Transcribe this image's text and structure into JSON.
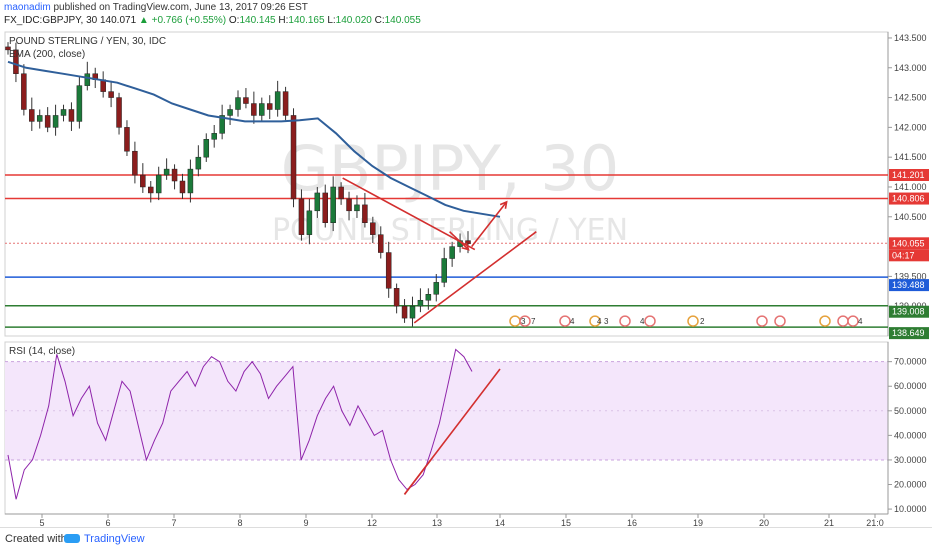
{
  "header": {
    "author": "maonadim",
    "published_text": "published on TradingView.com, June 13, 2017 09:26 EST",
    "symbol_line": "FX_IDC:GBPJPY, 30",
    "last": "140.071",
    "change": "▲ +0.766 (+0.55%)",
    "o_label": "O:",
    "o_value": "140.145",
    "h_label": "H:",
    "h_value": "140.165",
    "l_label": "L:",
    "l_value": "140.020",
    "c_label": "C:",
    "c_value": "140.055"
  },
  "chart_data": [
    {
      "type": "candlestick",
      "title": "POUND STERLING / YEN, 30, IDC",
      "indicator": "EMA (200, close)",
      "watermark_symbol": "GBPJPY, 30",
      "watermark_name": "POUND STERLING / YEN",
      "ylim": [
        138.5,
        143.6
      ],
      "y_ticks": [
        "143.500",
        "143.000",
        "142.500",
        "142.000",
        "141.500",
        "141.000",
        "140.500",
        "139.500",
        "139.000"
      ],
      "x_ticks": [
        "5",
        "6",
        "7",
        "8",
        "9",
        "12",
        "13",
        "14",
        "15",
        "16",
        "19",
        "20",
        "21",
        "21:0"
      ],
      "price_labels": [
        {
          "value": "141.201",
          "color": "#e53935"
        },
        {
          "value": "140.806",
          "color": "#e53935"
        },
        {
          "value": "140.055",
          "color": "#e53935"
        },
        {
          "value": "04:17",
          "color": "#e53935"
        },
        {
          "value": "139.488",
          "color": "#1e5bd8"
        },
        {
          "value": "139.008",
          "color": "#2e7d32"
        },
        {
          "value": "138.649",
          "color": "#2e7d32"
        }
      ],
      "horizontal_levels": [
        {
          "price": 141.201,
          "color": "#e53935"
        },
        {
          "price": 140.806,
          "color": "#e53935"
        },
        {
          "price": 139.488,
          "color": "#1e5bd8"
        },
        {
          "price": 139.008,
          "color": "#2e7d32"
        },
        {
          "price": 138.649,
          "color": "#2e7d32"
        }
      ],
      "candles_close": [
        143.3,
        142.9,
        142.3,
        142.1,
        142.2,
        142.0,
        142.2,
        142.3,
        142.1,
        142.7,
        142.9,
        142.8,
        142.6,
        142.5,
        142.0,
        141.6,
        141.2,
        141.0,
        140.9,
        141.2,
        141.3,
        141.1,
        140.9,
        141.3,
        141.5,
        141.8,
        141.9,
        142.2,
        142.3,
        142.5,
        142.4,
        142.2,
        142.4,
        142.3,
        142.6,
        142.2,
        140.8,
        140.2,
        140.6,
        140.9,
        140.4,
        141.0,
        140.8,
        140.6,
        140.7,
        140.4,
        140.2,
        139.9,
        139.3,
        139.0,
        138.8,
        139.0,
        139.1,
        139.2,
        139.4,
        139.8,
        140.0,
        140.1,
        140.05
      ],
      "ema200": [
        143.1,
        143.0,
        142.95,
        142.9,
        142.85,
        142.8,
        142.75,
        142.65,
        142.55,
        142.4,
        142.3,
        142.2,
        142.15,
        142.1,
        142.1,
        142.1,
        142.12,
        142.15,
        141.9,
        141.6,
        141.35,
        141.15,
        141.0,
        140.85,
        140.7,
        140.6,
        140.55,
        140.5
      ],
      "event_markers": [
        "3",
        "7",
        "4",
        "4",
        "3",
        "4",
        "2",
        "4"
      ]
    },
    {
      "type": "line",
      "title": "RSI (14, close)",
      "ylim": [
        8,
        78
      ],
      "y_ticks": [
        "70.0000",
        "60.0000",
        "50.0000",
        "40.0000",
        "30.0000",
        "20.0000",
        "10.0000"
      ],
      "band": [
        30,
        70
      ],
      "values": [
        32,
        14,
        26,
        30,
        40,
        52,
        73,
        62,
        48,
        55,
        60,
        45,
        38,
        50,
        62,
        58,
        44,
        30,
        38,
        45,
        58,
        62,
        66,
        60,
        68,
        72,
        70,
        62,
        58,
        66,
        70,
        65,
        55,
        60,
        64,
        68,
        30,
        38,
        48,
        55,
        60,
        50,
        44,
        52,
        46,
        40,
        42,
        30,
        22,
        18,
        20,
        24,
        34,
        45,
        60,
        75,
        72,
        66
      ]
    },
    {
      "type": "annotations",
      "lines": [
        {
          "from": [
            9.55,
            141.15
          ],
          "to": [
            13.6,
            139.95
          ],
          "label": "down_trendline"
        },
        {
          "from": [
            12.65,
            138.72
          ],
          "to": [
            14.55,
            140.25
          ],
          "label": "up_trendline"
        },
        {
          "from": [
            13.55,
            140.0
          ],
          "to": [
            14.1,
            140.75
          ],
          "label": "arrow_up"
        },
        {
          "from": [
            13.2,
            140.25
          ],
          "to": [
            13.5,
            139.95
          ],
          "label": "arrow_down"
        },
        {
          "from": [
            12.5,
            16
          ],
          "to": [
            14.0,
            67
          ],
          "label": "rsi_trendline"
        }
      ]
    }
  ],
  "footer": {
    "created_with": "Created with",
    "brand": "TradingView"
  }
}
